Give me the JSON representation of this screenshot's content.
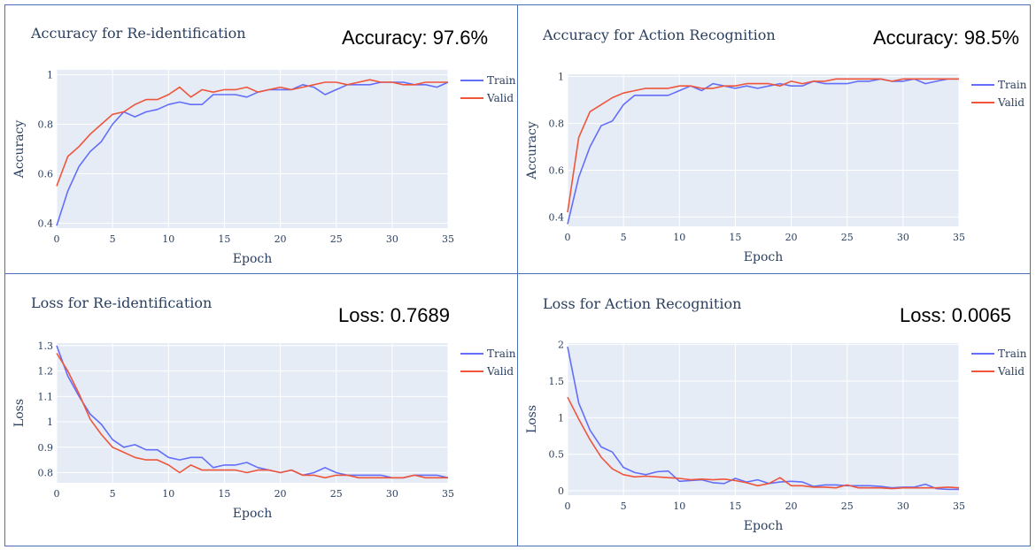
{
  "chart_data": [
    {
      "type": "line",
      "title": "Accuracy for Re-identification",
      "annotation": "Accuracy: 97.6%",
      "xlabel": "Epoch",
      "ylabel": "Accuracy",
      "xlim": [
        0,
        35
      ],
      "ylim": [
        0.38,
        1.02
      ],
      "xticks": [
        0,
        5,
        10,
        15,
        20,
        25,
        30,
        35
      ],
      "yticks": [
        0.4,
        0.6,
        0.8,
        1
      ],
      "ytick_labels": [
        "0.4",
        "0.6",
        "0.8",
        "1"
      ],
      "legend": "top-right",
      "x": [
        0,
        1,
        2,
        3,
        4,
        5,
        6,
        7,
        8,
        9,
        10,
        11,
        12,
        13,
        14,
        15,
        16,
        17,
        18,
        19,
        20,
        21,
        22,
        23,
        24,
        25,
        26,
        27,
        28,
        29,
        30,
        31,
        32,
        33,
        34,
        35
      ],
      "series": [
        {
          "name": "Train",
          "color": "#636efa",
          "values": [
            0.39,
            0.53,
            0.63,
            0.69,
            0.73,
            0.8,
            0.85,
            0.83,
            0.85,
            0.86,
            0.88,
            0.89,
            0.88,
            0.88,
            0.92,
            0.92,
            0.92,
            0.91,
            0.93,
            0.94,
            0.94,
            0.94,
            0.96,
            0.95,
            0.92,
            0.94,
            0.96,
            0.96,
            0.96,
            0.97,
            0.97,
            0.97,
            0.96,
            0.96,
            0.95,
            0.97
          ]
        },
        {
          "name": "Valid",
          "color": "#ef553b",
          "values": [
            0.55,
            0.67,
            0.71,
            0.76,
            0.8,
            0.84,
            0.85,
            0.88,
            0.9,
            0.9,
            0.92,
            0.95,
            0.91,
            0.94,
            0.93,
            0.94,
            0.94,
            0.95,
            0.93,
            0.94,
            0.95,
            0.94,
            0.95,
            0.96,
            0.97,
            0.97,
            0.96,
            0.97,
            0.98,
            0.97,
            0.97,
            0.96,
            0.96,
            0.97,
            0.97,
            0.97
          ]
        }
      ]
    },
    {
      "type": "line",
      "title": "Accuracy for Action Recognition",
      "annotation": "Accuracy: 98.5%",
      "xlabel": "Epoch",
      "ylabel": "Accuracy",
      "xlim": [
        0,
        35
      ],
      "ylim": [
        0.36,
        1.01
      ],
      "xticks": [
        0,
        5,
        10,
        15,
        20,
        25,
        30,
        35
      ],
      "yticks": [
        0.4,
        0.6,
        0.8,
        1
      ],
      "ytick_labels": [
        "0.4",
        "0.6",
        "0.8",
        "1"
      ],
      "legend": "top-right",
      "x": [
        0,
        1,
        2,
        3,
        4,
        5,
        6,
        7,
        8,
        9,
        10,
        11,
        12,
        13,
        14,
        15,
        16,
        17,
        18,
        19,
        20,
        21,
        22,
        23,
        24,
        25,
        26,
        27,
        28,
        29,
        30,
        31,
        32,
        33,
        34,
        35
      ],
      "series": [
        {
          "name": "Train",
          "color": "#636efa",
          "values": [
            0.37,
            0.57,
            0.7,
            0.79,
            0.81,
            0.88,
            0.92,
            0.92,
            0.92,
            0.92,
            0.94,
            0.96,
            0.94,
            0.97,
            0.96,
            0.95,
            0.96,
            0.95,
            0.96,
            0.97,
            0.96,
            0.96,
            0.98,
            0.97,
            0.97,
            0.97,
            0.98,
            0.98,
            0.99,
            0.98,
            0.98,
            0.99,
            0.97,
            0.98,
            0.99,
            0.99
          ]
        },
        {
          "name": "Valid",
          "color": "#ef553b",
          "values": [
            0.42,
            0.74,
            0.85,
            0.88,
            0.91,
            0.93,
            0.94,
            0.95,
            0.95,
            0.95,
            0.96,
            0.96,
            0.95,
            0.95,
            0.96,
            0.96,
            0.97,
            0.97,
            0.97,
            0.96,
            0.98,
            0.97,
            0.98,
            0.98,
            0.99,
            0.99,
            0.99,
            0.99,
            0.99,
            0.98,
            0.99,
            0.99,
            0.99,
            0.99,
            0.99,
            0.99
          ]
        }
      ]
    },
    {
      "type": "line",
      "title": "Loss for Re-identification",
      "annotation": "Loss: 0.7689",
      "xlabel": "Epoch",
      "ylabel": "Loss",
      "xlim": [
        0,
        35
      ],
      "ylim": [
        0.76,
        1.31
      ],
      "xticks": [
        0,
        5,
        10,
        15,
        20,
        25,
        30,
        35
      ],
      "yticks": [
        0.8,
        0.9,
        1,
        1.1,
        1.2,
        1.3
      ],
      "ytick_labels": [
        "0.8",
        "0.9",
        "1",
        "1.1",
        "1.2",
        "1.3"
      ],
      "legend": "top-right",
      "x": [
        0,
        1,
        2,
        3,
        4,
        5,
        6,
        7,
        8,
        9,
        10,
        11,
        12,
        13,
        14,
        15,
        16,
        17,
        18,
        19,
        20,
        21,
        22,
        23,
        24,
        25,
        26,
        27,
        28,
        29,
        30,
        31,
        32,
        33,
        34,
        35
      ],
      "series": [
        {
          "name": "Train",
          "color": "#636efa",
          "values": [
            1.3,
            1.18,
            1.1,
            1.03,
            0.99,
            0.93,
            0.9,
            0.91,
            0.89,
            0.89,
            0.86,
            0.85,
            0.86,
            0.86,
            0.82,
            0.83,
            0.83,
            0.84,
            0.82,
            0.81,
            0.8,
            0.81,
            0.79,
            0.8,
            0.82,
            0.8,
            0.79,
            0.79,
            0.79,
            0.79,
            0.78,
            0.78,
            0.79,
            0.79,
            0.79,
            0.78
          ]
        },
        {
          "name": "Valid",
          "color": "#ef553b",
          "values": [
            1.27,
            1.2,
            1.11,
            1.01,
            0.95,
            0.9,
            0.88,
            0.86,
            0.85,
            0.85,
            0.83,
            0.8,
            0.83,
            0.81,
            0.81,
            0.81,
            0.81,
            0.8,
            0.81,
            0.81,
            0.8,
            0.81,
            0.79,
            0.79,
            0.78,
            0.79,
            0.79,
            0.78,
            0.78,
            0.78,
            0.78,
            0.78,
            0.79,
            0.78,
            0.78,
            0.78
          ]
        }
      ]
    },
    {
      "type": "line",
      "title": "Loss for Action Recognition",
      "annotation": "Loss: 0.0065",
      "xlabel": "Epoch",
      "ylabel": "Loss",
      "xlim": [
        0,
        35
      ],
      "ylim": [
        -0.06,
        2.02
      ],
      "xticks": [
        0,
        5,
        10,
        15,
        20,
        25,
        30,
        35
      ],
      "yticks": [
        0,
        0.5,
        1,
        1.5,
        2
      ],
      "ytick_labels": [
        "0",
        "0.5",
        "1",
        "1.5",
        "2"
      ],
      "legend": "top-right",
      "x": [
        0,
        1,
        2,
        3,
        4,
        5,
        6,
        7,
        8,
        9,
        10,
        11,
        12,
        13,
        14,
        15,
        16,
        17,
        18,
        19,
        20,
        21,
        22,
        23,
        24,
        25,
        26,
        27,
        28,
        29,
        30,
        31,
        32,
        33,
        34,
        35
      ],
      "series": [
        {
          "name": "Train",
          "color": "#636efa",
          "values": [
            1.97,
            1.2,
            0.83,
            0.6,
            0.53,
            0.32,
            0.25,
            0.22,
            0.26,
            0.27,
            0.13,
            0.14,
            0.15,
            0.11,
            0.1,
            0.17,
            0.12,
            0.15,
            0.1,
            0.12,
            0.13,
            0.12,
            0.06,
            0.08,
            0.08,
            0.07,
            0.07,
            0.07,
            0.06,
            0.04,
            0.05,
            0.05,
            0.09,
            0.03,
            0.02,
            0.02
          ]
        },
        {
          "name": "Valid",
          "color": "#ef553b",
          "values": [
            1.28,
            0.98,
            0.7,
            0.46,
            0.3,
            0.22,
            0.19,
            0.2,
            0.19,
            0.18,
            0.17,
            0.15,
            0.16,
            0.15,
            0.16,
            0.14,
            0.11,
            0.07,
            0.1,
            0.18,
            0.07,
            0.07,
            0.05,
            0.05,
            0.04,
            0.08,
            0.04,
            0.04,
            0.04,
            0.03,
            0.04,
            0.04,
            0.04,
            0.04,
            0.05,
            0.04
          ]
        }
      ]
    }
  ]
}
